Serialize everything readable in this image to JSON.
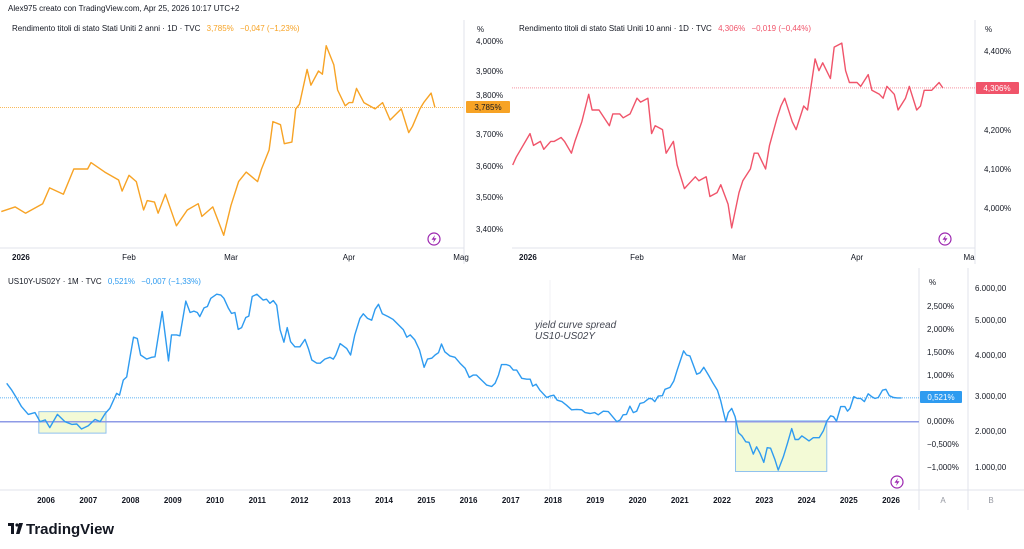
{
  "header": {
    "credit": "Alex975 creato con TradingView.com, Apr 25, 2026 10:17 UTC+2"
  },
  "colors": {
    "us02y": "#f7a325",
    "us10y": "#f0546a",
    "spread": "#2e9bf0",
    "zero_line": "#8e9ae6",
    "highlight_fill": "#f3fad6",
    "highlight_border": "#8fc1ee",
    "lightning": "#9c27b0"
  },
  "charts": {
    "us02y": {
      "legend_title": "Rendimento titoli di stato Stati Uniti 2 anni · 1D · TVC",
      "last": "3,785%",
      "change": "−0,047 (−1,23%)",
      "unit": "%",
      "badge": "3,785%",
      "y_ticks": [
        "4,000%",
        "3,900%",
        "3,800%",
        "3,700%",
        "3,600%",
        "3,500%",
        "3,400%"
      ],
      "x_ticks": [
        "2026",
        "Feb",
        "Mar",
        "Apr",
        "Mag"
      ],
      "icon": "lightning-icon"
    },
    "us10y": {
      "legend_title": "Rendimento titoli di stato Stati Uniti 10 anni · 1D · TVC",
      "last": "4,306%",
      "change": "−0,019 (−0,44%)",
      "unit": "%",
      "badge": "4,306%",
      "y_ticks": [
        "4,400%",
        "4,200%",
        "4,100%",
        "4,000%"
      ],
      "x_ticks": [
        "2026",
        "Feb",
        "Mar",
        "Apr",
        "Ma"
      ],
      "icon": "lightning-icon"
    },
    "spread": {
      "legend_title": "US10Y-US02Y · 1M · TVC",
      "last": "0,521%",
      "change": "−0,007 (−1,33%)",
      "unit": "%",
      "badge": "0,521%",
      "y_ticks": [
        "2,500%",
        "2,000%",
        "1,500%",
        "1,000%",
        "0,000%",
        "−0,500%",
        "−1,000%"
      ],
      "y2_ticks": [
        "6.000,00",
        "5.000,00",
        "4.000,00",
        "3.000,00",
        "2.000,00",
        "1.000,00"
      ],
      "x_ticks": [
        "2006",
        "2007",
        "2008",
        "2009",
        "2010",
        "2011",
        "2012",
        "2013",
        "2014",
        "2015",
        "2016",
        "2017",
        "2018",
        "2019",
        "2020",
        "2021",
        "2022",
        "2023",
        "2024",
        "2025",
        "2026"
      ],
      "scale_labels": [
        "A",
        "B"
      ],
      "annotation": [
        "yield curve spread",
        "US10-US02Y"
      ],
      "icon": "lightning-icon"
    }
  },
  "chart_data": [
    {
      "type": "line",
      "title": "Rendimento titoli di stato Stati Uniti 2 anni · 1D · TVC",
      "ylabel": "%",
      "ylim": [
        3.35,
        4.0
      ],
      "y_scale_ticks": [
        3.4,
        3.5,
        3.6,
        3.7,
        3.8,
        3.9,
        4.0
      ],
      "x_ticks": [
        "2026-01-01",
        "2026-02-01",
        "2026-03-01",
        "2026-04-01",
        "2026-05-01"
      ],
      "last_value": 3.785,
      "x": [
        "2025-12-26",
        "2025-12-30",
        "2026-01-02",
        "2026-01-07",
        "2026-01-09",
        "2026-01-13",
        "2026-01-16",
        "2026-01-20",
        "2026-01-21",
        "2026-01-25",
        "2026-01-29",
        "2026-01-30",
        "2026-02-01",
        "2026-02-03",
        "2026-02-05",
        "2026-02-06",
        "2026-02-08",
        "2026-02-09",
        "2026-02-11",
        "2026-02-14",
        "2026-02-17",
        "2026-02-20",
        "2026-02-21",
        "2026-02-24",
        "2026-02-27",
        "2026-03-01",
        "2026-03-03",
        "2026-03-05",
        "2026-03-08",
        "2026-03-09",
        "2026-03-11",
        "2026-03-12",
        "2026-03-14",
        "2026-03-15",
        "2026-03-17",
        "2026-03-18",
        "2026-03-19",
        "2026-03-21",
        "2026-03-22",
        "2026-03-24",
        "2026-03-25",
        "2026-03-26",
        "2026-03-28",
        "2026-03-29",
        "2026-03-31",
        "2026-04-01",
        "2026-04-02",
        "2026-04-03",
        "2026-04-05",
        "2026-04-08",
        "2026-04-10",
        "2026-04-12",
        "2026-04-15",
        "2026-04-17",
        "2026-04-18",
        "2026-04-20",
        "2026-04-21",
        "2026-04-23",
        "2026-04-24"
      ],
      "values": [
        3.455,
        3.47,
        3.45,
        3.48,
        3.53,
        3.51,
        3.59,
        3.59,
        3.61,
        3.58,
        3.555,
        3.52,
        3.57,
        3.55,
        3.46,
        3.49,
        3.485,
        3.45,
        3.51,
        3.41,
        3.46,
        3.48,
        3.44,
        3.47,
        3.38,
        3.475,
        3.55,
        3.58,
        3.55,
        3.59,
        3.65,
        3.74,
        3.73,
        3.67,
        3.675,
        3.78,
        3.795,
        3.905,
        3.855,
        3.9,
        3.89,
        3.98,
        3.92,
        3.84,
        3.79,
        3.8,
        3.8,
        3.845,
        3.8,
        3.78,
        3.8,
        3.745,
        3.78,
        3.705,
        3.725,
        3.78,
        3.8,
        3.83,
        3.785
      ]
    },
    {
      "type": "line",
      "title": "Rendimento titoli di stato Stati Uniti 10 anni · 1D · TVC",
      "ylabel": "%",
      "ylim": [
        3.93,
        4.45
      ],
      "y_scale_ticks": [
        4.0,
        4.1,
        4.2,
        4.3,
        4.4
      ],
      "x_ticks": [
        "2026-01-01",
        "2026-02-01",
        "2026-03-01",
        "2026-04-01",
        "2026-05-01"
      ],
      "last_value": 4.306,
      "x": [
        "2025-12-27",
        "2025-12-28",
        "2026-01-01",
        "2026-01-02",
        "2026-01-04",
        "2026-01-05",
        "2026-01-07",
        "2026-01-08",
        "2026-01-10",
        "2026-01-11",
        "2026-01-13",
        "2026-01-14",
        "2026-01-16",
        "2026-01-18",
        "2026-01-19",
        "2026-01-21",
        "2026-01-24",
        "2026-01-25",
        "2026-01-27",
        "2026-01-28",
        "2026-01-30",
        "2026-02-01",
        "2026-02-02",
        "2026-02-04",
        "2026-02-05",
        "2026-02-06",
        "2026-02-08",
        "2026-02-09",
        "2026-02-11",
        "2026-02-12",
        "2026-02-14",
        "2026-02-15",
        "2026-02-17",
        "2026-02-18",
        "2026-02-20",
        "2026-02-21",
        "2026-02-23",
        "2026-02-24",
        "2026-02-26",
        "2026-02-27",
        "2026-03-01",
        "2026-03-02",
        "2026-03-04",
        "2026-03-05",
        "2026-03-06",
        "2026-03-08",
        "2026-03-09",
        "2026-03-11",
        "2026-03-12",
        "2026-03-13",
        "2026-03-15",
        "2026-03-16",
        "2026-03-18",
        "2026-03-19",
        "2026-03-21",
        "2026-03-22",
        "2026-03-23",
        "2026-03-25",
        "2026-03-26",
        "2026-03-28",
        "2026-03-29",
        "2026-03-30",
        "2026-04-01",
        "2026-04-02",
        "2026-04-04",
        "2026-04-05",
        "2026-04-07",
        "2026-04-08",
        "2026-04-09",
        "2026-04-11",
        "2026-04-12",
        "2026-04-14",
        "2026-04-15",
        "2026-04-17",
        "2026-04-18",
        "2026-04-19",
        "2026-04-21",
        "2026-04-23",
        "2026-04-24"
      ],
      "values": [
        4.11,
        4.13,
        4.19,
        4.16,
        4.17,
        4.15,
        4.17,
        4.17,
        4.18,
        4.17,
        4.14,
        4.17,
        4.22,
        4.29,
        4.25,
        4.25,
        4.21,
        4.24,
        4.24,
        4.23,
        4.24,
        4.28,
        4.27,
        4.28,
        4.19,
        4.21,
        4.2,
        4.14,
        4.17,
        4.11,
        4.05,
        4.06,
        4.08,
        4.07,
        4.08,
        4.03,
        4.04,
        4.06,
        4.01,
        3.95,
        4.04,
        4.07,
        4.1,
        4.14,
        4.14,
        4.1,
        4.16,
        4.23,
        4.26,
        4.28,
        4.22,
        4.2,
        4.26,
        4.25,
        4.38,
        4.35,
        4.37,
        4.33,
        4.41,
        4.42,
        4.35,
        4.32,
        4.32,
        4.31,
        4.34,
        4.3,
        4.29,
        4.28,
        4.31,
        4.29,
        4.25,
        4.28,
        4.31,
        4.25,
        4.26,
        4.3,
        4.3,
        4.32,
        4.306
      ]
    },
    {
      "type": "line",
      "title": "US10Y-US02Y · 1M · TVC",
      "ylabel": "%",
      "ylim": [
        -1.2,
        2.9
      ],
      "y_scale_ticks": [
        -1.0,
        -0.5,
        0,
        1.0,
        1.5,
        2.0,
        2.5
      ],
      "xlabel": "",
      "xlim": [
        2005,
        2026.4
      ],
      "last_value": 0.521,
      "reference_lines": [
        0,
        0.521
      ],
      "highlight_regions": [
        {
          "x": [
            2005.83,
            2007.42
          ],
          "y": [
            -0.25,
            0.22
          ]
        },
        {
          "x": [
            2022.32,
            2024.48
          ],
          "y": [
            -1.09,
            0.02
          ]
        }
      ],
      "annotation": "yield curve spread US10-US02Y",
      "x": [
        2005.07,
        2005.19,
        2005.31,
        2005.42,
        2005.58,
        2005.74,
        2005.86,
        2005.98,
        2006.09,
        2006.27,
        2006.45,
        2006.61,
        2006.73,
        2006.84,
        2007.0,
        2007.16,
        2007.28,
        2007.4,
        2007.51,
        2007.67,
        2007.74,
        2007.83,
        2007.91,
        2007.99,
        2008.07,
        2008.16,
        2008.24,
        2008.38,
        2008.5,
        2008.58,
        2008.75,
        2008.9,
        2008.97,
        2009.09,
        2009.17,
        2009.31,
        2009.41,
        2009.5,
        2009.58,
        2009.64,
        2009.74,
        2009.82,
        2009.9,
        2010.04,
        2010.14,
        2010.21,
        2010.32,
        2010.39,
        2010.47,
        2010.55,
        2010.63,
        2010.73,
        2010.8,
        2010.88,
        2010.99,
        2011.14,
        2011.22,
        2011.3,
        2011.38,
        2011.46,
        2011.54,
        2011.63,
        2011.71,
        2011.79,
        2011.89,
        2012.01,
        2012.13,
        2012.21,
        2012.29,
        2012.41,
        2012.49,
        2012.6,
        2012.72,
        2012.8,
        2012.86,
        2012.96,
        2013.12,
        2013.21,
        2013.31,
        2013.43,
        2013.51,
        2013.61,
        2013.71,
        2013.79,
        2013.87,
        2013.96,
        2014.1,
        2014.21,
        2014.34,
        2014.46,
        2014.54,
        2014.62,
        2014.73,
        2014.84,
        2014.95,
        2015.03,
        2015.13,
        2015.21,
        2015.29,
        2015.36,
        2015.44,
        2015.56,
        2015.68,
        2015.8,
        2015.92,
        2016.02,
        2016.11,
        2016.19,
        2016.31,
        2016.43,
        2016.55,
        2016.63,
        2016.71,
        2016.78,
        2016.9,
        2016.98,
        2017.06,
        2017.14,
        2017.26,
        2017.38,
        2017.46,
        2017.52,
        2017.6,
        2017.69,
        2017.85,
        2017.93,
        2018.02,
        2018.1,
        2018.21,
        2018.32,
        2018.44,
        2018.56,
        2018.68,
        2018.76,
        2018.88,
        2018.99,
        2019.07,
        2019.19,
        2019.31,
        2019.4,
        2019.51,
        2019.59,
        2019.66,
        2019.74,
        2019.82,
        2019.9,
        2019.98,
        2020.06,
        2020.15,
        2020.27,
        2020.34,
        2020.41,
        2020.49,
        2020.59,
        2020.65,
        2020.77,
        2020.86,
        2020.94,
        2021.09,
        2021.16,
        2021.24,
        2021.32,
        2021.4,
        2021.48,
        2021.57,
        2021.68,
        2021.79,
        2021.89,
        2021.97,
        2022.03,
        2022.09,
        2022.15,
        2022.23,
        2022.31,
        2022.39,
        2022.47,
        2022.56,
        2022.64,
        2022.74,
        2022.82,
        2022.9,
        2022.99,
        2023.07,
        2023.15,
        2023.25,
        2023.33,
        2023.45,
        2023.55,
        2023.65,
        2023.73,
        2023.81,
        2023.89,
        2023.97,
        2024.06,
        2024.16,
        2024.3,
        2024.4,
        2024.48,
        2024.57,
        2024.64,
        2024.71,
        2024.81,
        2024.91,
        2024.97,
        2025.03,
        2025.12,
        2025.2,
        2025.28,
        2025.37,
        2025.46,
        2025.54,
        2025.62,
        2025.7,
        2025.8,
        2025.88,
        2025.96,
        2026.06,
        2026.15,
        2026.25
      ],
      "values": [
        0.84,
        0.69,
        0.51,
        0.33,
        0.16,
        0.2,
        0.0,
        0.04,
        -0.13,
        0.16,
        0.0,
        -0.06,
        -0.05,
        -0.16,
        -0.09,
        0.05,
        0.0,
        0.18,
        0.29,
        0.62,
        0.58,
        0.91,
        0.98,
        1.42,
        1.85,
        1.82,
        1.46,
        1.37,
        1.41,
        1.42,
        2.41,
        1.33,
        1.9,
        1.9,
        1.88,
        2.64,
        2.39,
        2.42,
        2.39,
        2.3,
        2.49,
        2.52,
        2.7,
        2.79,
        2.77,
        2.7,
        2.48,
        2.37,
        2.39,
        2.02,
        2.06,
        2.28,
        2.31,
        2.74,
        2.79,
        2.66,
        2.68,
        2.59,
        2.65,
        2.55,
        2.01,
        1.74,
        2.06,
        1.75,
        1.64,
        1.64,
        1.8,
        1.6,
        1.35,
        1.28,
        1.28,
        1.37,
        1.41,
        1.37,
        1.46,
        1.71,
        1.6,
        1.46,
        1.9,
        2.26,
        2.36,
        2.26,
        2.22,
        2.46,
        2.57,
        2.36,
        2.3,
        2.24,
        2.12,
        2.01,
        1.85,
        1.9,
        1.79,
        1.57,
        1.19,
        1.37,
        1.39,
        1.46,
        1.51,
        1.7,
        1.53,
        1.44,
        1.41,
        1.28,
        1.17,
        0.97,
        1.02,
        1.02,
        0.91,
        0.8,
        0.77,
        0.84,
        1.02,
        1.25,
        1.25,
        1.22,
        1.13,
        1.13,
        0.95,
        0.93,
        0.93,
        0.78,
        0.82,
        0.69,
        0.53,
        0.56,
        0.58,
        0.47,
        0.44,
        0.36,
        0.26,
        0.27,
        0.26,
        0.2,
        0.18,
        0.2,
        0.15,
        0.23,
        0.22,
        0.12,
        0.0,
        0.04,
        0.15,
        0.16,
        0.34,
        0.2,
        0.23,
        0.4,
        0.42,
        0.51,
        0.5,
        0.44,
        0.56,
        0.57,
        0.71,
        0.75,
        0.89,
        1.13,
        1.55,
        1.46,
        1.44,
        1.24,
        1.04,
        1.07,
        1.19,
        1.02,
        0.84,
        0.69,
        0.46,
        0.22,
        0.0,
        0.2,
        0.29,
        0.11,
        -0.24,
        -0.31,
        -0.44,
        -0.45,
        -0.71,
        -0.55,
        -0.69,
        -0.89,
        -0.57,
        -0.58,
        -0.82,
        -1.06,
        -0.77,
        -0.47,
        -0.15,
        -0.39,
        -0.39,
        -0.31,
        -0.36,
        -0.42,
        -0.35,
        -0.35,
        -0.2,
        0.01,
        0.13,
        0.11,
        0.01,
        0.33,
        0.33,
        0.23,
        0.29,
        0.55,
        0.51,
        0.51,
        0.44,
        0.61,
        0.55,
        0.51,
        0.53,
        0.69,
        0.71,
        0.57,
        0.53,
        0.52,
        0.521
      ]
    }
  ],
  "footer": {
    "logo_text": "TradingView"
  }
}
